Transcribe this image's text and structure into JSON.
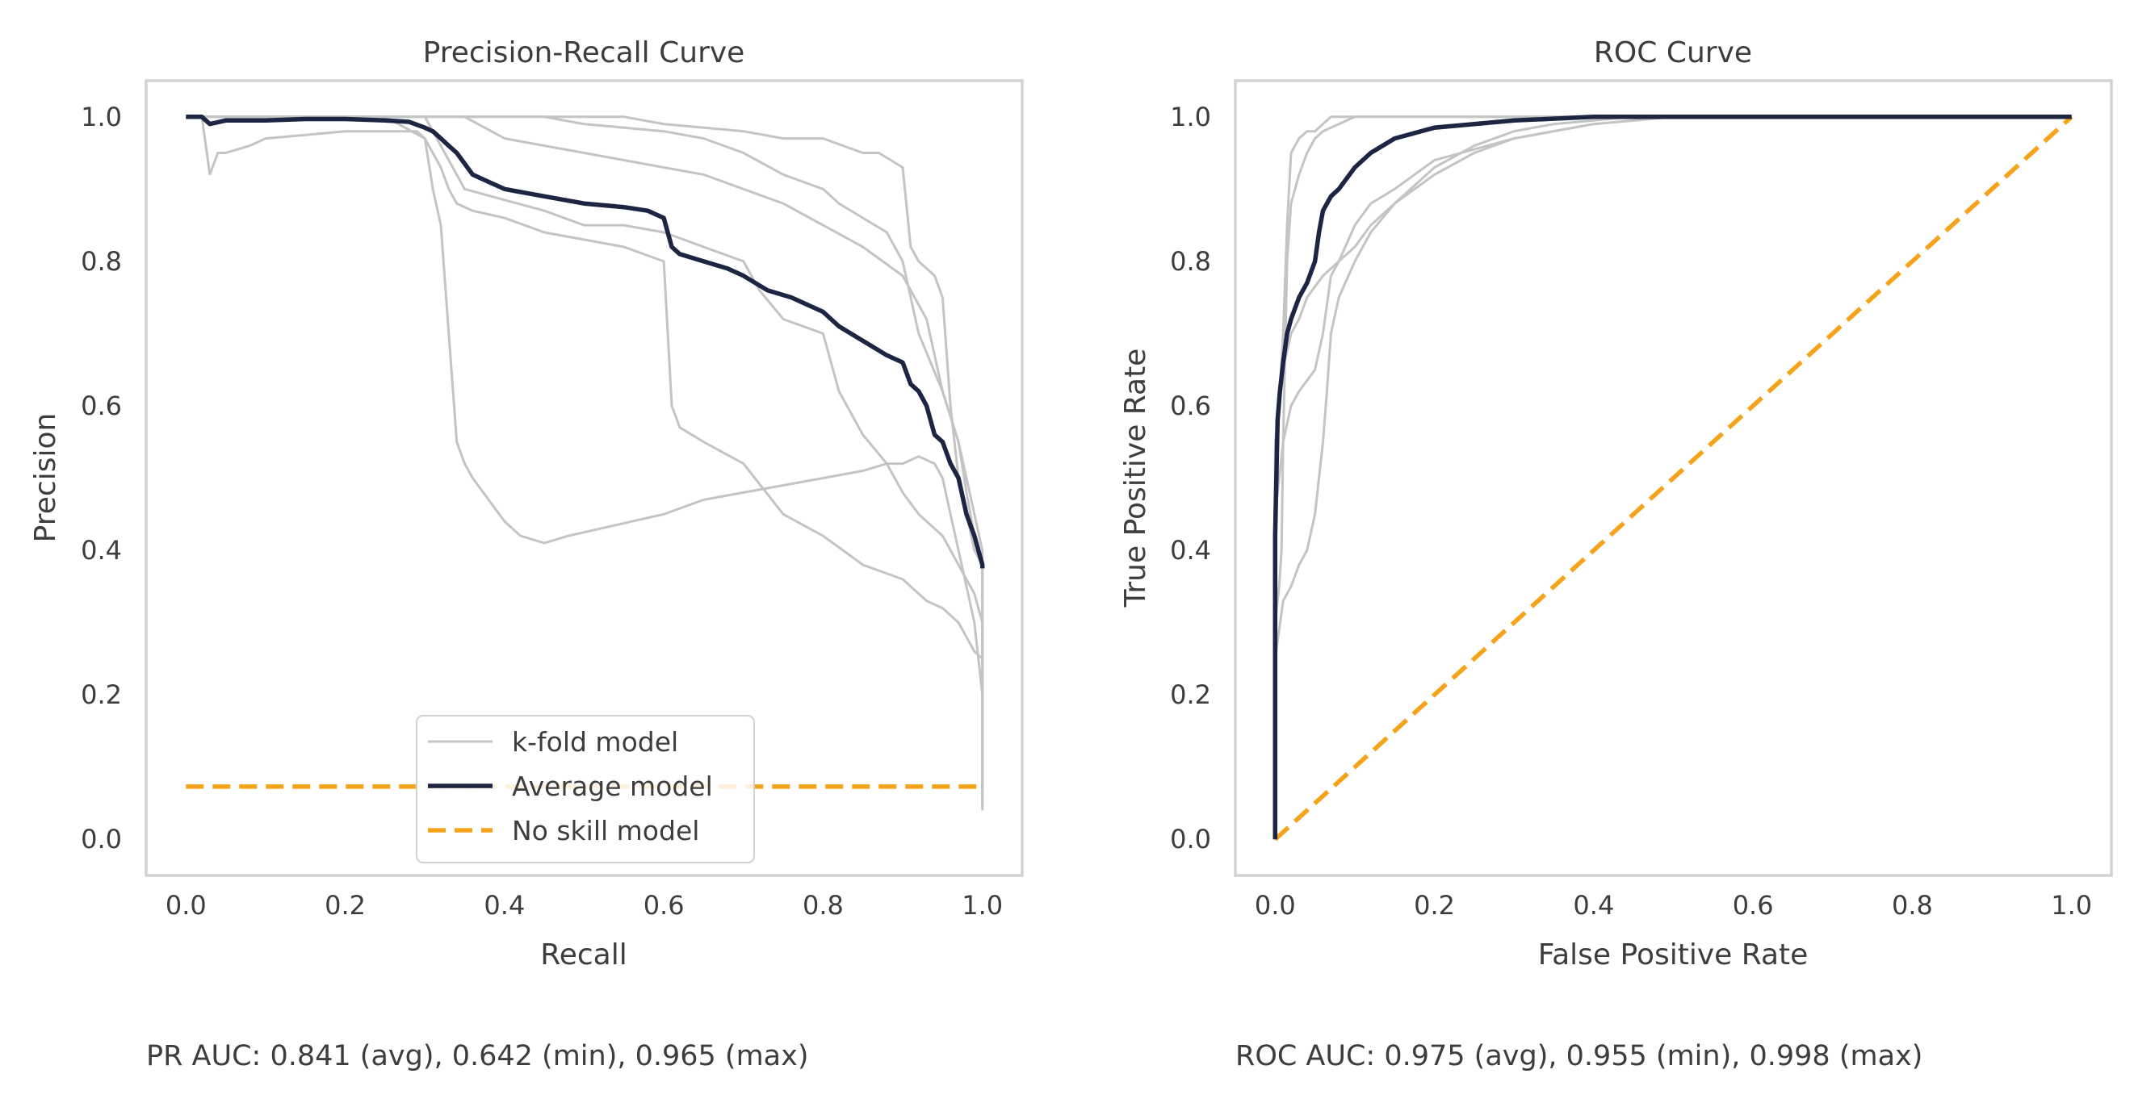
{
  "chart_data": [
    {
      "type": "line",
      "title": "Precision-Recall Curve",
      "xlabel": "Recall",
      "ylabel": "Precision",
      "xlim": [
        -0.05,
        1.05
      ],
      "ylim": [
        -0.05,
        1.05
      ],
      "xticks": [
        "0.0",
        "0.2",
        "0.4",
        "0.6",
        "0.8",
        "1.0"
      ],
      "yticks": [
        "0.0",
        "0.2",
        "0.4",
        "0.6",
        "0.8",
        "1.0"
      ],
      "grid": false,
      "legend": {
        "placement": "lower-center",
        "entries": [
          "k-fold model",
          "Average model",
          "No skill model"
        ]
      },
      "series": [
        {
          "name": "k-fold model",
          "role": "fold",
          "x": [
            0.0,
            0.02,
            0.03,
            0.04,
            0.05,
            0.08,
            0.1,
            0.15,
            0.2,
            0.25,
            0.29,
            0.3,
            0.31,
            0.32,
            0.33,
            0.34,
            0.35,
            0.36,
            0.38,
            0.4,
            0.42,
            0.45,
            0.48,
            0.52,
            0.56,
            0.6,
            0.65,
            0.7,
            0.75,
            0.8,
            0.85,
            0.88,
            0.9,
            0.92,
            0.94,
            0.95,
            0.96,
            0.97,
            0.98,
            0.99,
            1.0,
            1.0
          ],
          "y": [
            1.0,
            1.0,
            0.92,
            0.95,
            0.95,
            0.96,
            0.97,
            0.975,
            0.98,
            0.98,
            0.98,
            0.97,
            0.9,
            0.85,
            0.7,
            0.55,
            0.52,
            0.5,
            0.47,
            0.44,
            0.42,
            0.41,
            0.42,
            0.43,
            0.44,
            0.45,
            0.47,
            0.48,
            0.49,
            0.5,
            0.51,
            0.52,
            0.52,
            0.53,
            0.52,
            0.5,
            0.45,
            0.4,
            0.35,
            0.3,
            0.2,
            0.04
          ]
        },
        {
          "name": "k-fold model",
          "role": "fold",
          "x": [
            0.0,
            0.25,
            0.3,
            0.32,
            0.33,
            0.34,
            0.36,
            0.4,
            0.45,
            0.5,
            0.55,
            0.6,
            0.61,
            0.62,
            0.65,
            0.7,
            0.75,
            0.8,
            0.85,
            0.9,
            0.93,
            0.95,
            0.97,
            0.98,
            0.99,
            1.0,
            1.0
          ],
          "y": [
            1.0,
            1.0,
            0.97,
            0.93,
            0.9,
            0.88,
            0.87,
            0.86,
            0.84,
            0.83,
            0.82,
            0.8,
            0.6,
            0.57,
            0.55,
            0.52,
            0.45,
            0.42,
            0.38,
            0.36,
            0.33,
            0.32,
            0.3,
            0.28,
            0.26,
            0.25,
            0.08
          ]
        },
        {
          "name": "k-fold model",
          "role": "fold",
          "x": [
            0.0,
            0.3,
            0.35,
            0.45,
            0.5,
            0.55,
            0.6,
            0.65,
            0.7,
            0.72,
            0.75,
            0.8,
            0.82,
            0.85,
            0.88,
            0.9,
            0.92,
            0.95,
            0.97,
            0.99,
            1.0,
            1.0
          ],
          "y": [
            1.0,
            1.0,
            0.9,
            0.87,
            0.85,
            0.85,
            0.84,
            0.82,
            0.8,
            0.76,
            0.72,
            0.7,
            0.62,
            0.56,
            0.52,
            0.48,
            0.45,
            0.42,
            0.38,
            0.34,
            0.3,
            0.05
          ]
        },
        {
          "name": "k-fold model",
          "role": "fold",
          "x": [
            0.0,
            0.35,
            0.4,
            0.45,
            0.5,
            0.55,
            0.6,
            0.65,
            0.7,
            0.75,
            0.8,
            0.85,
            0.9,
            0.93,
            0.95,
            0.97,
            0.98,
            0.99,
            1.0,
            1.0
          ],
          "y": [
            1.0,
            1.0,
            0.97,
            0.96,
            0.95,
            0.94,
            0.93,
            0.92,
            0.9,
            0.88,
            0.85,
            0.82,
            0.78,
            0.72,
            0.62,
            0.55,
            0.48,
            0.42,
            0.38,
            0.07
          ]
        },
        {
          "name": "k-fold model",
          "role": "fold",
          "x": [
            0.0,
            0.45,
            0.5,
            0.6,
            0.65,
            0.7,
            0.75,
            0.8,
            0.82,
            0.85,
            0.88,
            0.9,
            0.91,
            0.92,
            0.95,
            0.97,
            0.98,
            0.99,
            1.0,
            1.0
          ],
          "y": [
            1.0,
            1.0,
            0.99,
            0.98,
            0.97,
            0.95,
            0.92,
            0.9,
            0.88,
            0.86,
            0.84,
            0.8,
            0.75,
            0.7,
            0.62,
            0.55,
            0.5,
            0.45,
            0.4,
            0.1
          ]
        },
        {
          "name": "k-fold model",
          "role": "fold",
          "x": [
            0.0,
            0.55,
            0.6,
            0.7,
            0.75,
            0.8,
            0.85,
            0.87,
            0.9,
            0.91,
            0.92,
            0.94,
            0.95,
            0.96,
            0.97,
            0.98,
            0.99,
            1.0,
            1.0
          ],
          "y": [
            1.0,
            1.0,
            0.99,
            0.98,
            0.97,
            0.97,
            0.95,
            0.95,
            0.93,
            0.82,
            0.8,
            0.78,
            0.75,
            0.6,
            0.5,
            0.45,
            0.4,
            0.38,
            0.06
          ]
        },
        {
          "name": "Average model",
          "role": "average",
          "x": [
            0.0,
            0.02,
            0.03,
            0.05,
            0.1,
            0.15,
            0.2,
            0.25,
            0.28,
            0.3,
            0.31,
            0.32,
            0.33,
            0.34,
            0.36,
            0.38,
            0.4,
            0.45,
            0.5,
            0.55,
            0.58,
            0.6,
            0.61,
            0.62,
            0.65,
            0.68,
            0.7,
            0.73,
            0.76,
            0.8,
            0.82,
            0.85,
            0.88,
            0.9,
            0.91,
            0.92,
            0.93,
            0.94,
            0.95,
            0.96,
            0.97,
            0.98,
            0.99,
            1.0,
            1.0
          ],
          "y": [
            1.0,
            1.0,
            0.99,
            0.995,
            0.995,
            0.997,
            0.997,
            0.995,
            0.993,
            0.985,
            0.98,
            0.97,
            0.96,
            0.95,
            0.92,
            0.91,
            0.9,
            0.89,
            0.88,
            0.875,
            0.87,
            0.86,
            0.82,
            0.81,
            0.8,
            0.79,
            0.78,
            0.76,
            0.75,
            0.73,
            0.71,
            0.69,
            0.67,
            0.66,
            0.63,
            0.62,
            0.6,
            0.56,
            0.55,
            0.52,
            0.5,
            0.45,
            0.42,
            0.38,
            0.375
          ]
        },
        {
          "name": "No skill model",
          "role": "no-skill",
          "x": [
            0.0,
            1.0
          ],
          "y": [
            0.073,
            0.073
          ]
        }
      ],
      "annotation": "PR AUC: 0.841 (avg), 0.642 (min), 0.965 (max)"
    },
    {
      "type": "line",
      "title": "ROC Curve",
      "xlabel": "False Positive Rate",
      "ylabel": "True Positive Rate",
      "xlim": [
        -0.05,
        1.05
      ],
      "ylim": [
        -0.05,
        1.05
      ],
      "xticks": [
        "0.0",
        "0.2",
        "0.4",
        "0.6",
        "0.8",
        "1.0"
      ],
      "yticks": [
        "0.0",
        "0.2",
        "0.4",
        "0.6",
        "0.8",
        "1.0"
      ],
      "grid": false,
      "series": [
        {
          "name": "k-fold model",
          "role": "fold",
          "x": [
            0.0,
            0.0,
            0.005,
            0.008,
            0.01,
            0.015,
            0.02,
            0.03,
            0.04,
            0.05,
            0.06,
            0.08,
            0.1,
            0.15,
            0.2,
            0.3,
            0.4,
            1.0
          ],
          "y": [
            0.0,
            0.3,
            0.35,
            0.4,
            0.55,
            0.8,
            0.88,
            0.92,
            0.95,
            0.97,
            0.98,
            0.99,
            1.0,
            1.0,
            1.0,
            1.0,
            1.0,
            1.0
          ]
        },
        {
          "name": "k-fold model",
          "role": "fold",
          "x": [
            0.0,
            0.0,
            0.005,
            0.01,
            0.015,
            0.02,
            0.03,
            0.04,
            0.05,
            0.06,
            0.07,
            0.1,
            0.15,
            1.0
          ],
          "y": [
            0.0,
            0.5,
            0.6,
            0.7,
            0.85,
            0.95,
            0.97,
            0.98,
            0.98,
            0.99,
            1.0,
            1.0,
            1.0,
            1.0
          ]
        },
        {
          "name": "k-fold model",
          "role": "fold",
          "x": [
            0.0,
            0.0,
            0.01,
            0.02,
            0.03,
            0.04,
            0.05,
            0.06,
            0.065,
            0.07,
            0.08,
            0.1,
            0.12,
            0.15,
            0.2,
            0.25,
            0.3,
            0.4,
            0.5,
            1.0
          ],
          "y": [
            0.0,
            0.25,
            0.33,
            0.35,
            0.38,
            0.4,
            0.45,
            0.55,
            0.62,
            0.7,
            0.75,
            0.8,
            0.84,
            0.88,
            0.92,
            0.95,
            0.97,
            0.99,
            1.0,
            1.0
          ]
        },
        {
          "name": "k-fold model",
          "role": "fold",
          "x": [
            0.0,
            0.0,
            0.01,
            0.02,
            0.03,
            0.05,
            0.06,
            0.07,
            0.08,
            0.1,
            0.12,
            0.15,
            0.2,
            0.3,
            0.4,
            0.5,
            1.0
          ],
          "y": [
            0.0,
            0.45,
            0.55,
            0.6,
            0.62,
            0.65,
            0.7,
            0.78,
            0.8,
            0.85,
            0.88,
            0.9,
            0.94,
            0.97,
            0.99,
            1.0,
            1.0
          ]
        },
        {
          "name": "k-fold model",
          "role": "fold",
          "x": [
            0.0,
            0.0,
            0.005,
            0.01,
            0.02,
            0.03,
            0.04,
            0.06,
            0.08,
            0.1,
            0.12,
            0.15,
            0.2,
            0.25,
            0.3,
            0.35,
            0.4,
            0.45,
            1.0
          ],
          "y": [
            0.0,
            0.55,
            0.6,
            0.65,
            0.7,
            0.72,
            0.75,
            0.78,
            0.8,
            0.82,
            0.85,
            0.88,
            0.93,
            0.96,
            0.98,
            0.99,
            0.995,
            1.0,
            1.0
          ]
        },
        {
          "name": "Average model",
          "role": "average",
          "x": [
            0.0,
            0.0,
            0.003,
            0.006,
            0.01,
            0.015,
            0.02,
            0.03,
            0.04,
            0.05,
            0.055,
            0.06,
            0.07,
            0.08,
            0.1,
            0.12,
            0.15,
            0.2,
            0.25,
            0.3,
            0.4,
            0.5,
            1.0
          ],
          "y": [
            0.0,
            0.42,
            0.58,
            0.62,
            0.66,
            0.7,
            0.72,
            0.75,
            0.77,
            0.8,
            0.84,
            0.87,
            0.89,
            0.9,
            0.93,
            0.95,
            0.97,
            0.985,
            0.99,
            0.995,
            1.0,
            1.0,
            1.0
          ]
        },
        {
          "name": "No skill model",
          "role": "no-skill",
          "x": [
            0.0,
            1.0
          ],
          "y": [
            0.0,
            1.0
          ]
        }
      ],
      "annotation": "ROC AUC: 0.975 (avg), 0.955 (min), 0.998 (max)"
    }
  ]
}
